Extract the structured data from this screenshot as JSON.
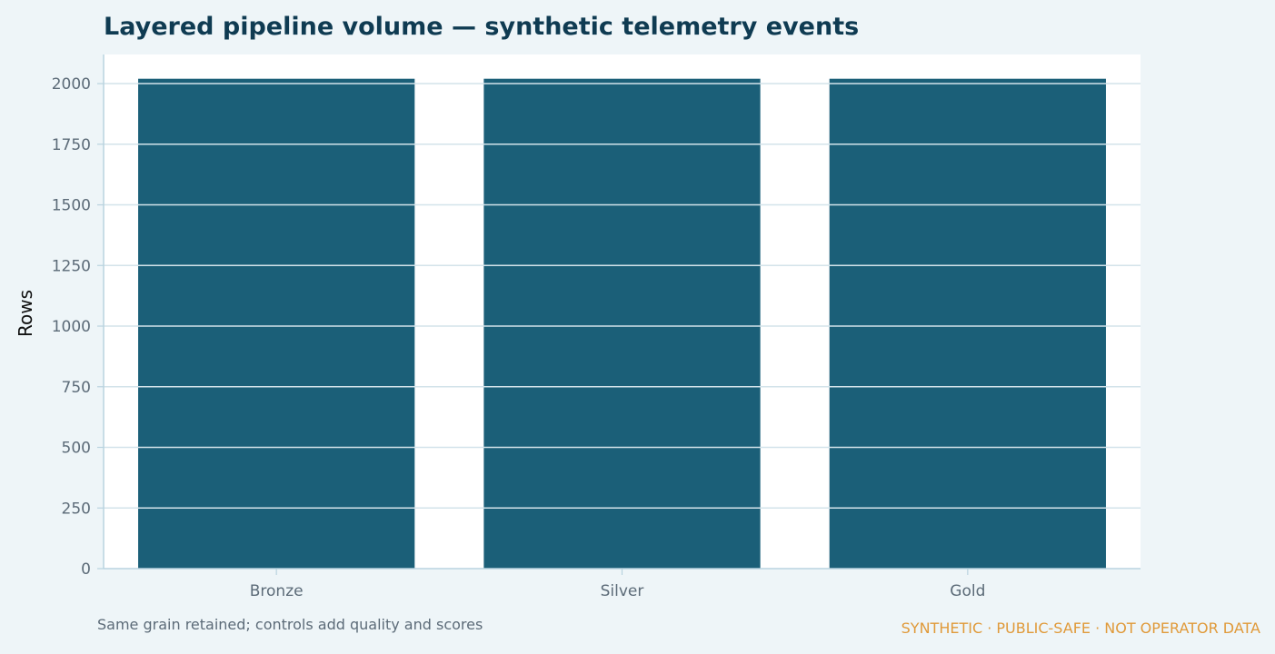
{
  "chart_data": {
    "type": "bar",
    "title": "Layered pipeline volume — synthetic telemetry events",
    "categories": [
      "Bronze",
      "Silver",
      "Gold"
    ],
    "values": [
      2020,
      2020,
      2020
    ],
    "xlabel": "",
    "ylabel": "Rows",
    "ylim": [
      0,
      2120
    ],
    "yticks": [
      0,
      250,
      500,
      750,
      1000,
      1250,
      1500,
      1750,
      2000
    ],
    "grid": true,
    "legend": "none",
    "colors": {
      "bar": "#1b5f78",
      "title": "#0f3b52",
      "tick_text": "#5c6b78",
      "axis": "#b9d3df",
      "grid": "#d3e3ea",
      "plot_bg": "#ffffff",
      "page_bg": "#eef5f8",
      "watermark": "#e09a3a"
    }
  },
  "footnote": "Same grain retained; controls add quality and scores",
  "watermark": "SYNTHETIC · PUBLIC-SAFE · NOT OPERATOR DATA"
}
